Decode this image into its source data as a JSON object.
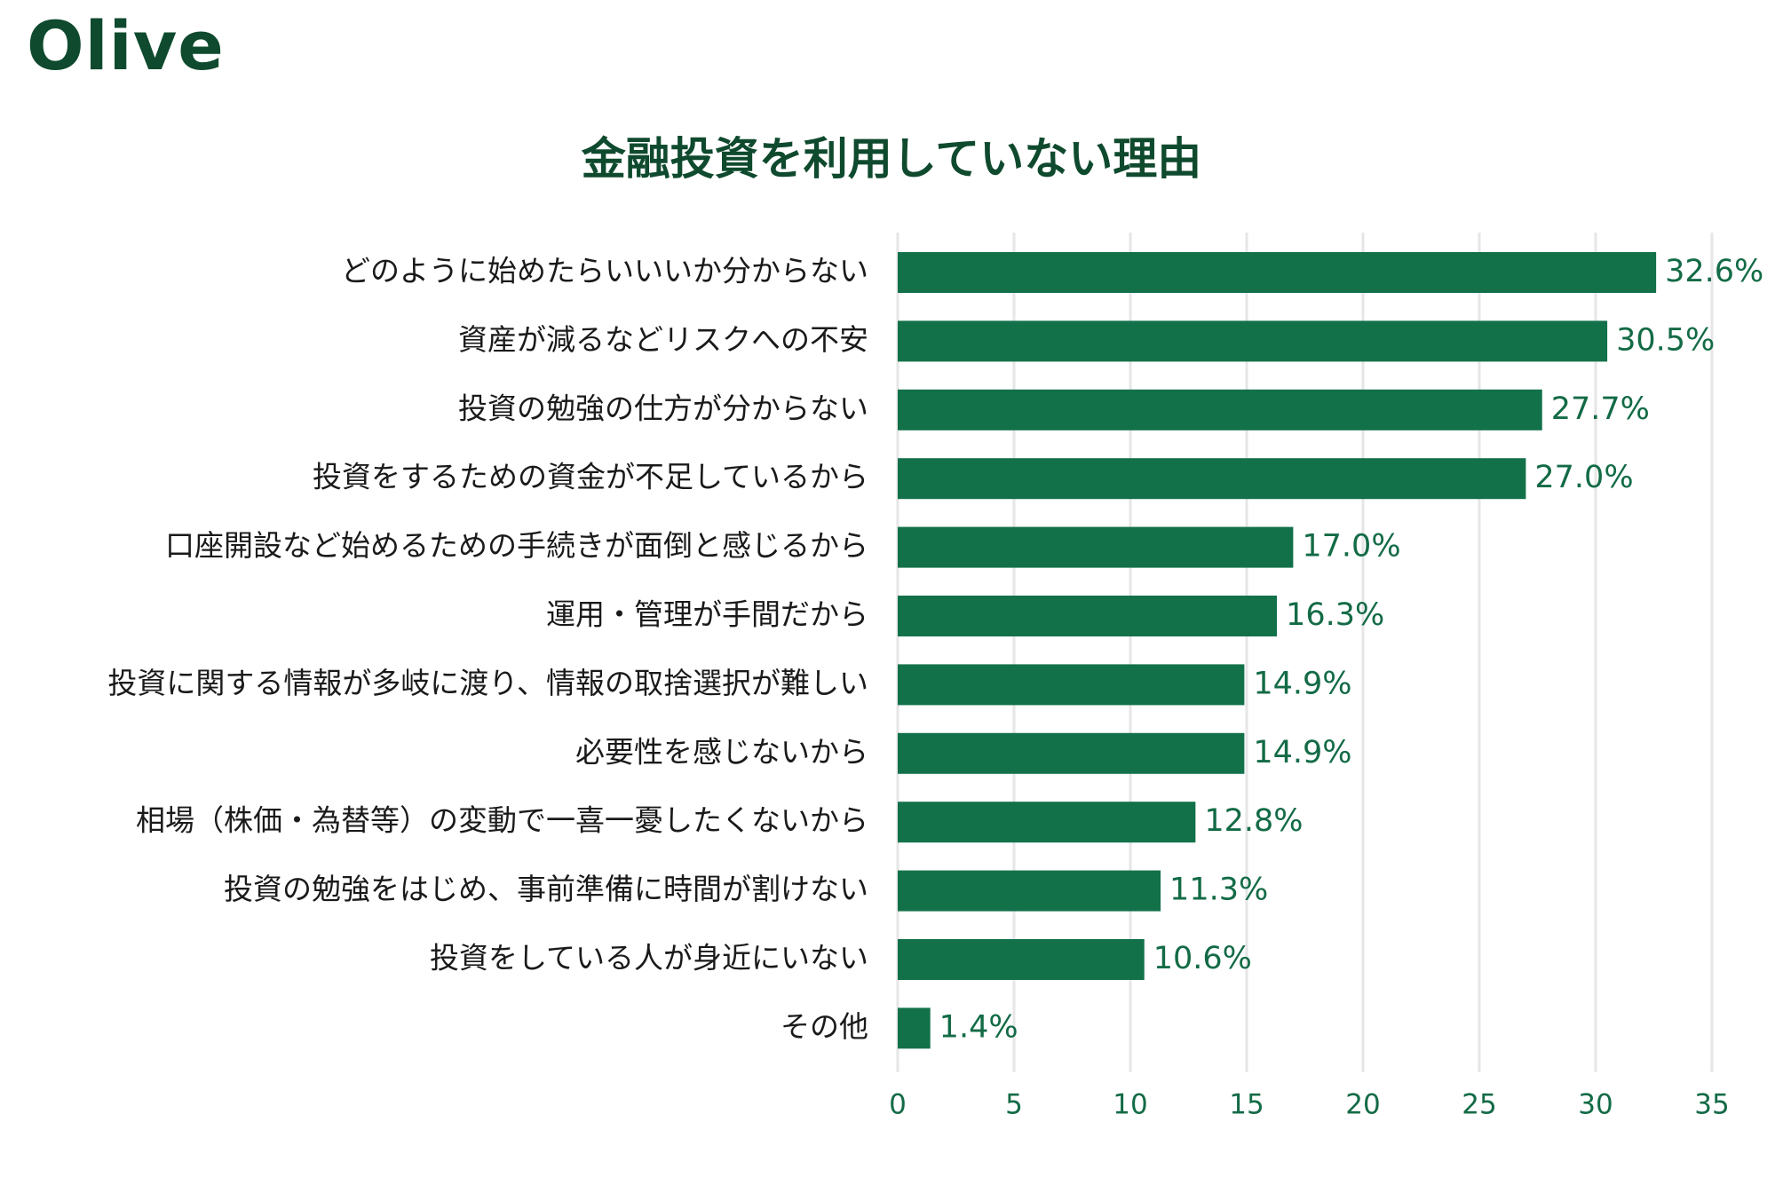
{
  "brand": {
    "logo_text": "Olive"
  },
  "colors": {
    "bar": "#13714a",
    "value_text": "#136b46",
    "title": "#0f4a2e",
    "grid": "#e6e6e6"
  },
  "chart_data": {
    "type": "bar",
    "orientation": "horizontal",
    "title": "金融投資を利用していない理由",
    "xlabel": "",
    "ylabel": "",
    "xlim": [
      0,
      35
    ],
    "x_ticks": [
      0,
      5,
      10,
      15,
      20,
      25,
      30,
      35
    ],
    "grid": "vertical",
    "unit": "%",
    "categories": [
      "どのように始めたらいいいか分からない",
      "資産が減るなどリスクへの不安",
      "投資の勉強の仕方が分からない",
      "投資をするための資金が不足しているから",
      "口座開設など始めるための手続きが面倒と感じるから",
      "運用・管理が手間だから",
      "投資に関する情報が多岐に渡り、情報の取捨選択が難しい",
      "必要性を感じないから",
      "相場（株価・為替等）の変動で一喜一憂したくないから",
      "投資の勉強をはじめ、事前準備に時間が割けない",
      "投資をしている人が身近にいない",
      "その他"
    ],
    "values": [
      32.6,
      30.5,
      27.7,
      27.0,
      17.0,
      16.3,
      14.9,
      14.9,
      12.8,
      11.3,
      10.6,
      1.4
    ],
    "value_labels": [
      "32.6%",
      "30.5%",
      "27.7%",
      "27.0%",
      "17.0%",
      "16.3%",
      "14.9%",
      "14.9%",
      "12.8%",
      "11.3%",
      "10.6%",
      "1.4%"
    ]
  }
}
